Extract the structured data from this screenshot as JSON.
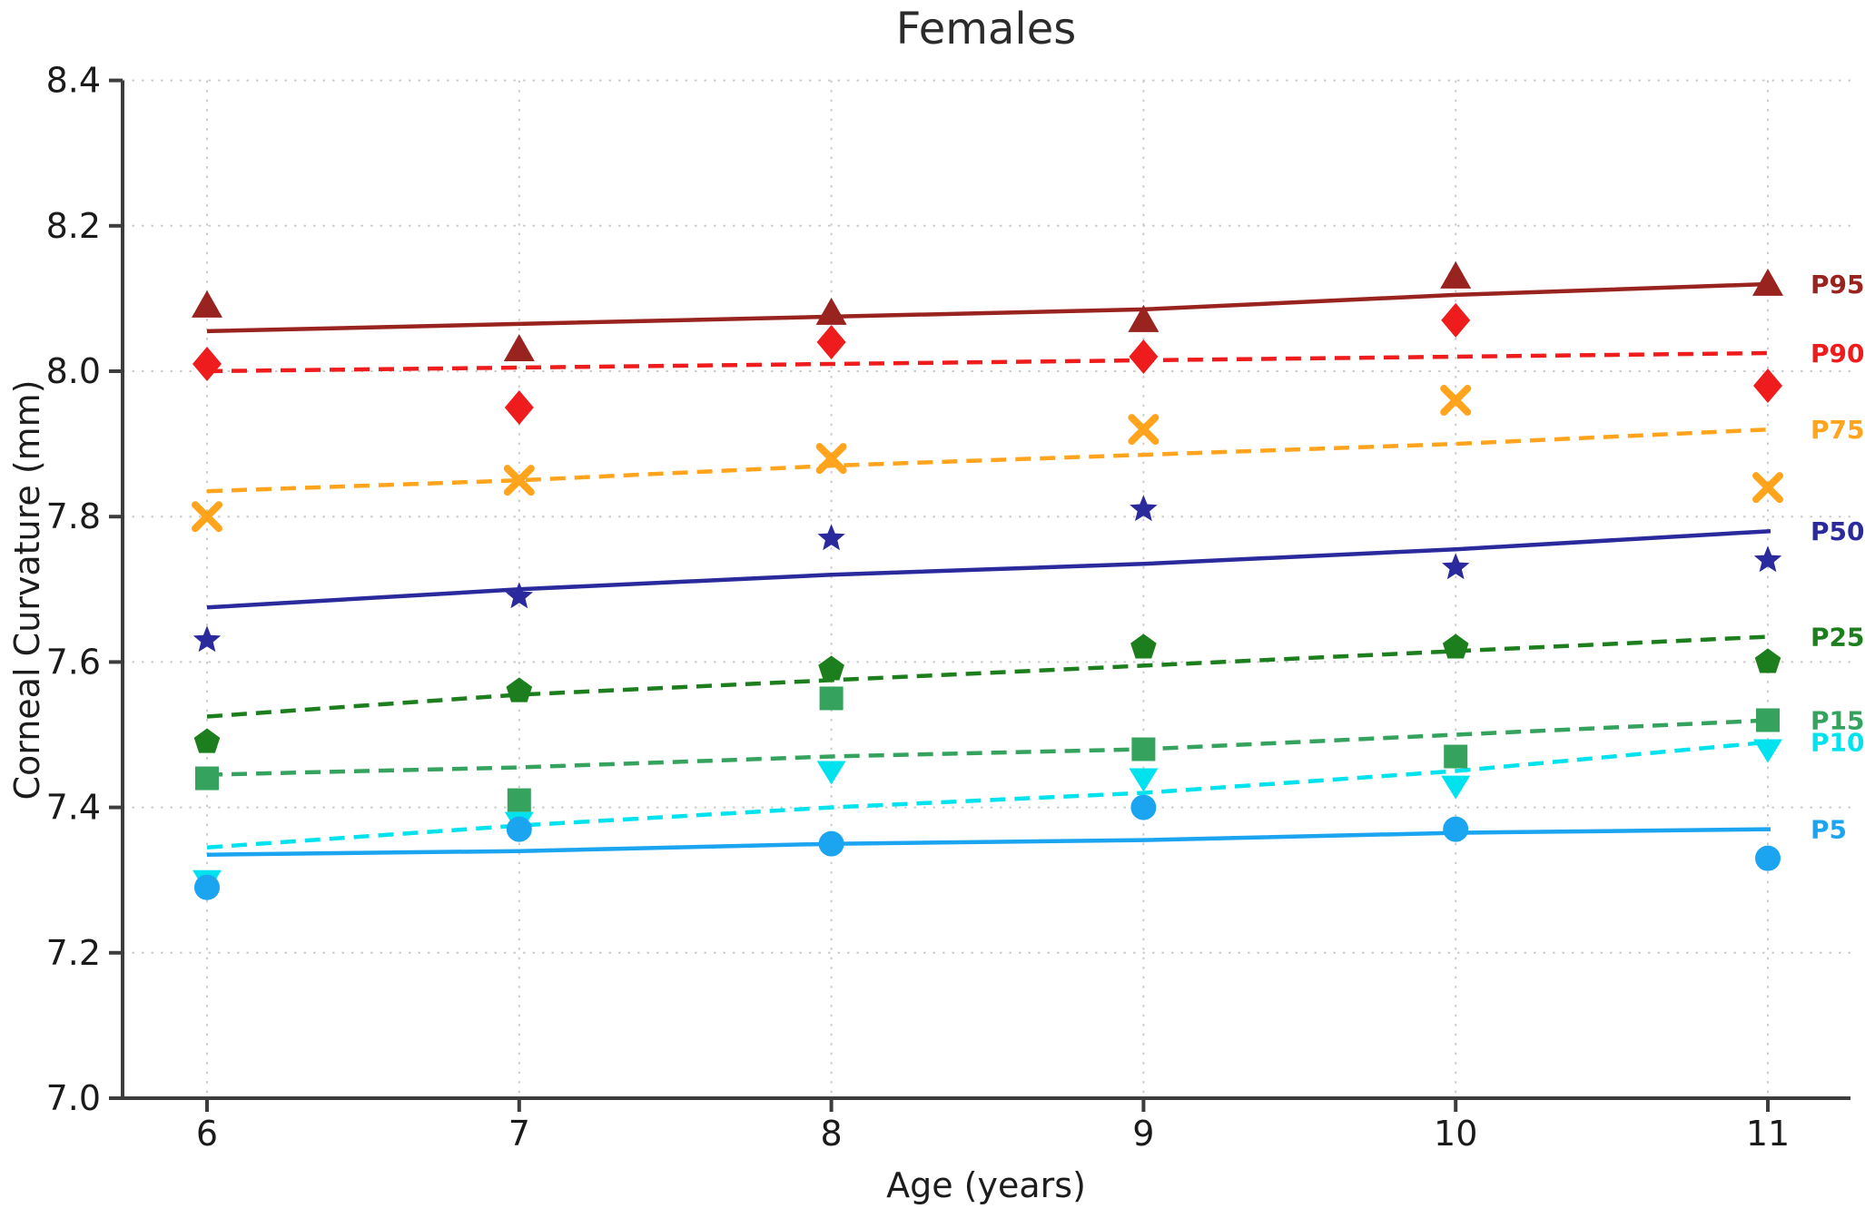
{
  "chart": {
    "title": "Females",
    "xlabel": "Age (years)",
    "ylabel": "Corneal Curvature (mm)"
  },
  "chart_data": {
    "type": "line",
    "title": "Females",
    "xlabel": "Age (years)",
    "ylabel": "Corneal Curvature (mm)",
    "x": [
      6,
      7,
      8,
      9,
      10,
      11
    ],
    "xtick_labels": [
      "6",
      "7",
      "8",
      "9",
      "10",
      "11"
    ],
    "yticks": [
      7.0,
      7.2,
      7.4,
      7.6,
      7.8,
      8.0,
      8.2,
      8.4
    ],
    "ytick_labels": [
      "7.0",
      "7.2",
      "7.4",
      "7.6",
      "7.8",
      "8.0",
      "8.2",
      "8.4"
    ],
    "xlim": [
      5.73,
      11.27
    ],
    "ylim": [
      7.0,
      8.4
    ],
    "grid": "dotted",
    "legend_position": "right-edge-labels",
    "series": [
      {
        "name": "P95",
        "color": "#98231f",
        "line_style": "solid",
        "marker": "triangle-up",
        "line_values": [
          8.055,
          8.065,
          8.075,
          8.085,
          8.105,
          8.12
        ],
        "scatter_values": [
          8.09,
          8.03,
          8.08,
          8.07,
          8.13,
          8.12
        ]
      },
      {
        "name": "P90",
        "color": "#ee1c1c",
        "line_style": "dashed",
        "marker": "diamond",
        "line_values": [
          8.0,
          8.005,
          8.01,
          8.015,
          8.02,
          8.025
        ],
        "scatter_values": [
          8.01,
          7.95,
          8.04,
          8.02,
          8.07,
          7.98
        ]
      },
      {
        "name": "P75",
        "color": "#ffa41c",
        "line_style": "dashed",
        "marker": "x",
        "line_values": [
          7.835,
          7.85,
          7.87,
          7.885,
          7.9,
          7.92
        ],
        "scatter_values": [
          7.8,
          7.85,
          7.88,
          7.92,
          7.96,
          7.84
        ]
      },
      {
        "name": "P50",
        "color": "#2a2a9c",
        "line_style": "solid",
        "marker": "star",
        "line_values": [
          7.675,
          7.7,
          7.72,
          7.735,
          7.755,
          7.78
        ],
        "scatter_values": [
          7.63,
          7.69,
          7.77,
          7.81,
          7.73,
          7.74
        ]
      },
      {
        "name": "P25",
        "color": "#1d7e1d",
        "line_style": "dashed",
        "marker": "pentagon",
        "line_values": [
          7.525,
          7.555,
          7.575,
          7.595,
          7.615,
          7.635
        ],
        "scatter_values": [
          7.49,
          7.56,
          7.59,
          7.62,
          7.62,
          7.6
        ]
      },
      {
        "name": "P15",
        "color": "#35a35e",
        "line_style": "dashed",
        "marker": "square",
        "line_values": [
          7.445,
          7.455,
          7.47,
          7.48,
          7.5,
          7.52
        ],
        "scatter_values": [
          7.44,
          7.41,
          7.55,
          7.48,
          7.47,
          7.52
        ]
      },
      {
        "name": "P10",
        "color": "#00e2ee",
        "line_style": "dashed",
        "marker": "triangle-down",
        "line_values": [
          7.345,
          7.375,
          7.4,
          7.42,
          7.45,
          7.49
        ],
        "scatter_values": [
          7.3,
          7.38,
          7.45,
          7.44,
          7.43,
          7.48
        ]
      },
      {
        "name": "P5",
        "color": "#1ba4f0",
        "line_style": "solid",
        "marker": "circle",
        "line_values": [
          7.335,
          7.34,
          7.35,
          7.355,
          7.365,
          7.37
        ],
        "scatter_values": [
          7.29,
          7.37,
          7.35,
          7.4,
          7.37,
          7.33
        ]
      }
    ]
  }
}
